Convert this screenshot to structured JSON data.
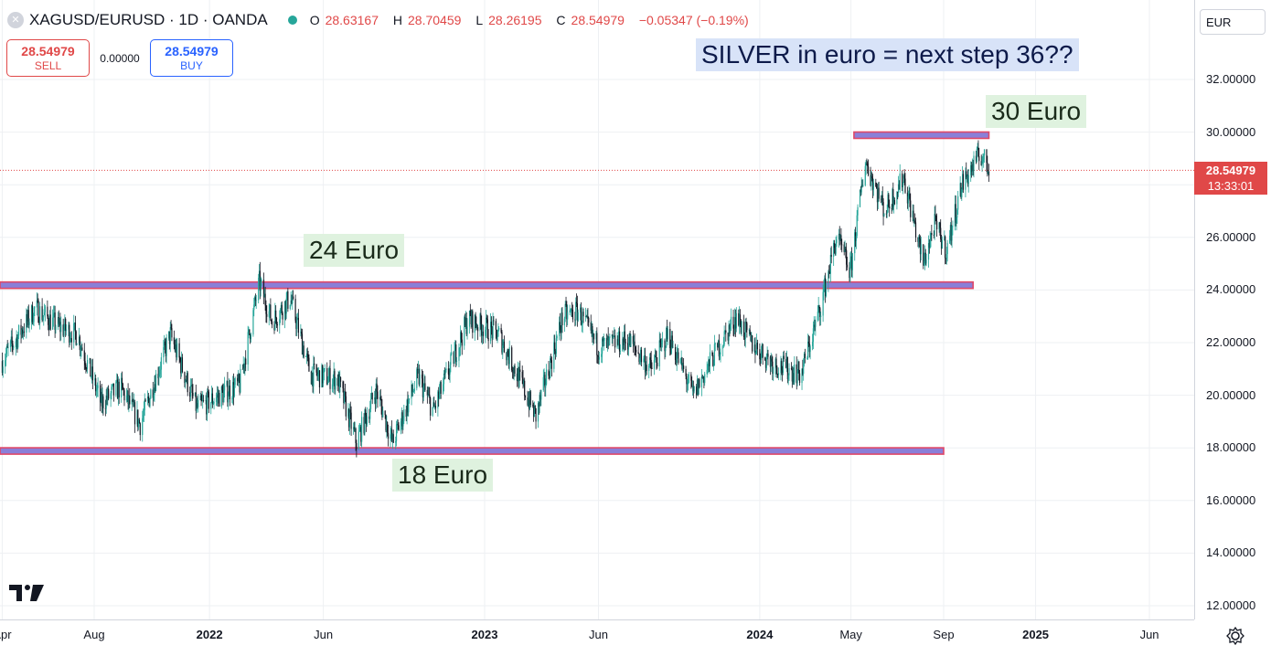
{
  "header": {
    "symbol_icon": "x-circle-icon",
    "title": "XAGUSD/EURUSD · 1D · OANDA",
    "ohlc": {
      "o_label": "O",
      "o": "28.63167",
      "h_label": "H",
      "h": "28.70459",
      "l_label": "L",
      "l": "28.26195",
      "c_label": "C",
      "c": "28.54979",
      "change": "−0.05347 (−0.19%)"
    }
  },
  "trade": {
    "sell_price": "28.54979",
    "sell_label": "SELL",
    "spread": "0.00000",
    "buy_price": "28.54979",
    "buy_label": "BUY"
  },
  "axis": {
    "currency": "EUR",
    "current_price": "28.54979",
    "countdown": "13:33:01"
  },
  "annotations": {
    "title": "SILVER in euro = next step 36??",
    "label_30": "30 Euro",
    "label_24": "24 Euro",
    "label_18": "18 Euro"
  },
  "colors": {
    "up": "#26a69a",
    "down": "#131722",
    "level_line": "#e04868",
    "current_price": "#e04848",
    "annotation_bg": "#dff2df",
    "title_bg": "#d8e3f8"
  },
  "chart_data": {
    "type": "candlestick",
    "title": "",
    "xlabel": "",
    "ylabel": "",
    "ylim": [
      11.5,
      33.5
    ],
    "y_ticks": [
      "12.00000",
      "14.00000",
      "16.00000",
      "18.00000",
      "20.00000",
      "22.00000",
      "24.00000",
      "26.00000",
      "28.00000",
      "30.00000",
      "32.00000"
    ],
    "x_ticks": [
      "Apr",
      "Aug",
      "2022",
      "Jun",
      "2023",
      "Jun",
      "2024",
      "May",
      "Sep",
      "2025",
      "Jun"
    ],
    "x_tick_dates": [
      "2021-04-01",
      "2021-08-01",
      "2022-01-01",
      "2022-06-01",
      "2023-01-01",
      "2023-06-01",
      "2024-01-01",
      "2024-05-01",
      "2024-09-01",
      "2025-01-01",
      "2025-06-01"
    ],
    "levels": [
      {
        "name": "30 Euro",
        "value": 29.9,
        "from": "2024-05-05",
        "to": "2024-10-31"
      },
      {
        "name": "24 Euro",
        "value": 24.2,
        "from": "2021-03-20",
        "to": "2024-10-10"
      },
      {
        "name": "18 Euro",
        "value": 17.9,
        "from": "2021-03-20",
        "to": "2024-09-01"
      }
    ],
    "price_series": [
      [
        "2021-04-01",
        21.3
      ],
      [
        "2021-05-15",
        23.3
      ],
      [
        "2021-06-15",
        22.6
      ],
      [
        "2021-07-10",
        22.3
      ],
      [
        "2021-08-10",
        19.7
      ],
      [
        "2021-09-05",
        20.3
      ],
      [
        "2021-10-01",
        18.9
      ],
      [
        "2021-11-10",
        22.3
      ],
      [
        "2021-12-15",
        19.5
      ],
      [
        "2022-02-10",
        20.4
      ],
      [
        "2022-03-08",
        24.3
      ],
      [
        "2022-03-25",
        22.8
      ],
      [
        "2022-04-18",
        23.7
      ],
      [
        "2022-05-15",
        20.8
      ],
      [
        "2022-06-20",
        20.6
      ],
      [
        "2022-07-15",
        18.2
      ],
      [
        "2022-08-10",
        20.2
      ],
      [
        "2022-09-01",
        18.2
      ],
      [
        "2022-10-05",
        20.7
      ],
      [
        "2022-10-25",
        19.4
      ],
      [
        "2022-12-10",
        22.9
      ],
      [
        "2023-01-20",
        22.3
      ],
      [
        "2023-02-10",
        21.0
      ],
      [
        "2023-03-10",
        19.2
      ],
      [
        "2023-04-15",
        23.0
      ],
      [
        "2023-05-05",
        23.2
      ],
      [
        "2023-06-01",
        21.8
      ],
      [
        "2023-07-10",
        22.1
      ],
      [
        "2023-08-10",
        21.0
      ],
      [
        "2023-09-01",
        22.3
      ],
      [
        "2023-10-05",
        20.0
      ],
      [
        "2023-11-01",
        21.5
      ],
      [
        "2023-12-01",
        23.0
      ],
      [
        "2023-12-20",
        22.0
      ],
      [
        "2024-01-20",
        21.2
      ],
      [
        "2024-02-25",
        20.8
      ],
      [
        "2024-03-20",
        23.2
      ],
      [
        "2024-04-12",
        26.0
      ],
      [
        "2024-04-30",
        24.7
      ],
      [
        "2024-05-20",
        28.9
      ],
      [
        "2024-06-15",
        27.0
      ],
      [
        "2024-07-10",
        28.3
      ],
      [
        "2024-08-05",
        25.0
      ],
      [
        "2024-08-20",
        26.5
      ],
      [
        "2024-09-05",
        25.5
      ],
      [
        "2024-09-25",
        28.0
      ],
      [
        "2024-10-20",
        29.2
      ],
      [
        "2024-10-31",
        28.55
      ]
    ]
  }
}
